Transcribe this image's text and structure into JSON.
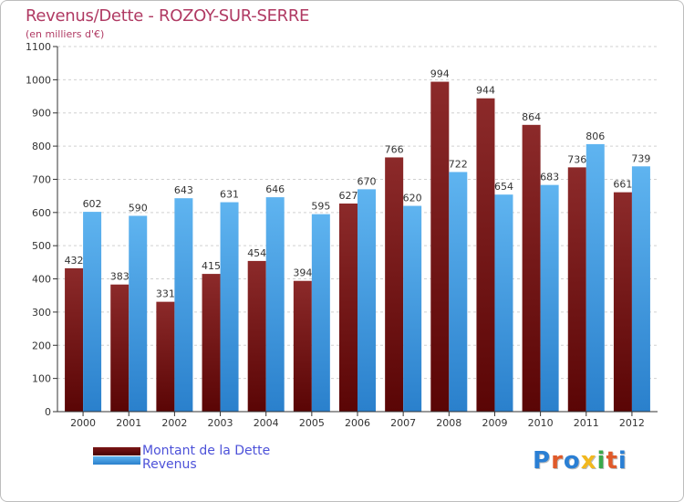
{
  "chart_data": {
    "type": "bar",
    "title": "Revenus/Dette - ROZOY-SUR-SERRE",
    "subtitle": "(en milliers d'€)",
    "categories": [
      "2000",
      "2001",
      "2002",
      "2003",
      "2004",
      "2005",
      "2006",
      "2007",
      "2008",
      "2009",
      "2010",
      "2011",
      "2012"
    ],
    "series": [
      {
        "name": "Montant de la Dette",
        "color": "#7a1616",
        "values": [
          432,
          383,
          331,
          415,
          454,
          394,
          627,
          766,
          994,
          944,
          864,
          736,
          661
        ]
      },
      {
        "name": "Revenus",
        "color": "#3a9ae6",
        "values": [
          602,
          590,
          643,
          631,
          646,
          595,
          670,
          620,
          722,
          654,
          683,
          806,
          739
        ]
      }
    ],
    "ylim": [
      0,
      1100
    ],
    "yticks": [
      0,
      100,
      200,
      300,
      400,
      500,
      600,
      700,
      800,
      900,
      1000,
      1100
    ],
    "grid": true,
    "legend_position": "bottom-left"
  },
  "logo": {
    "text": "Proxiti",
    "colors": [
      "#2a7fd4",
      "#e05a2a",
      "#2a7fd4",
      "#f2b81e",
      "#3aa84a",
      "#e05a2a",
      "#2a7fd4"
    ]
  }
}
